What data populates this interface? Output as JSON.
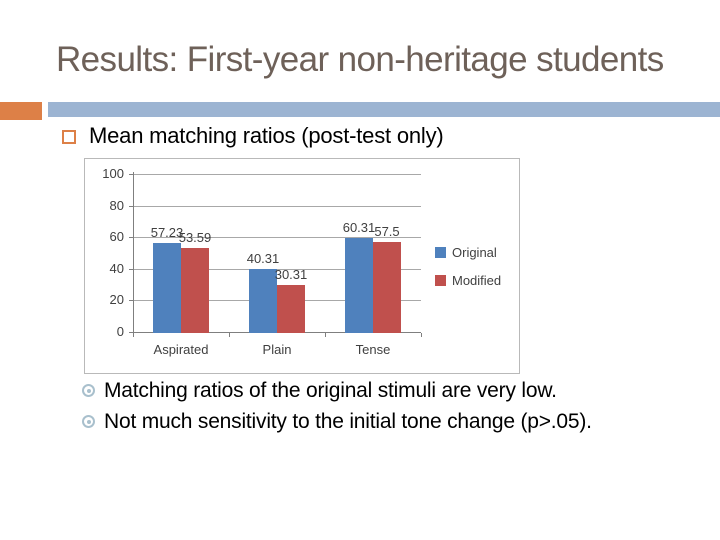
{
  "slide": {
    "title": "Results: First-year non-heritage students",
    "subtitle": "Mean matching ratios (post-test only)",
    "notes": [
      "Matching ratios of the original stimuli are very low.",
      "Not much sensitivity to the initial tone change (p>.05)."
    ]
  },
  "colors": {
    "title_text": "#6e6159",
    "accent_orange": "#dd8047",
    "accent_band_blue": "#9cb4d2",
    "note_bullet": "#a9c0cd",
    "series_original": "#4f81bd",
    "series_modified": "#c0504d",
    "chart_text": "#404040",
    "gridline": "#a8a8a8",
    "axis": "#7f7f7f"
  },
  "chart_data": {
    "type": "bar",
    "categories": [
      "Aspirated",
      "Plain",
      "Tense"
    ],
    "series": [
      {
        "name": "Original",
        "color": "#4f81bd",
        "values": [
          57.23,
          40.31,
          60.31
        ]
      },
      {
        "name": "Modified",
        "color": "#c0504d",
        "values": [
          53.59,
          30.31,
          57.5
        ]
      }
    ],
    "ylim": [
      0,
      100
    ],
    "yticks": [
      0,
      20,
      40,
      60,
      80,
      100
    ],
    "grid": true,
    "legend_position": "right",
    "data_labels": true,
    "title": "",
    "xlabel": "",
    "ylabel": ""
  }
}
